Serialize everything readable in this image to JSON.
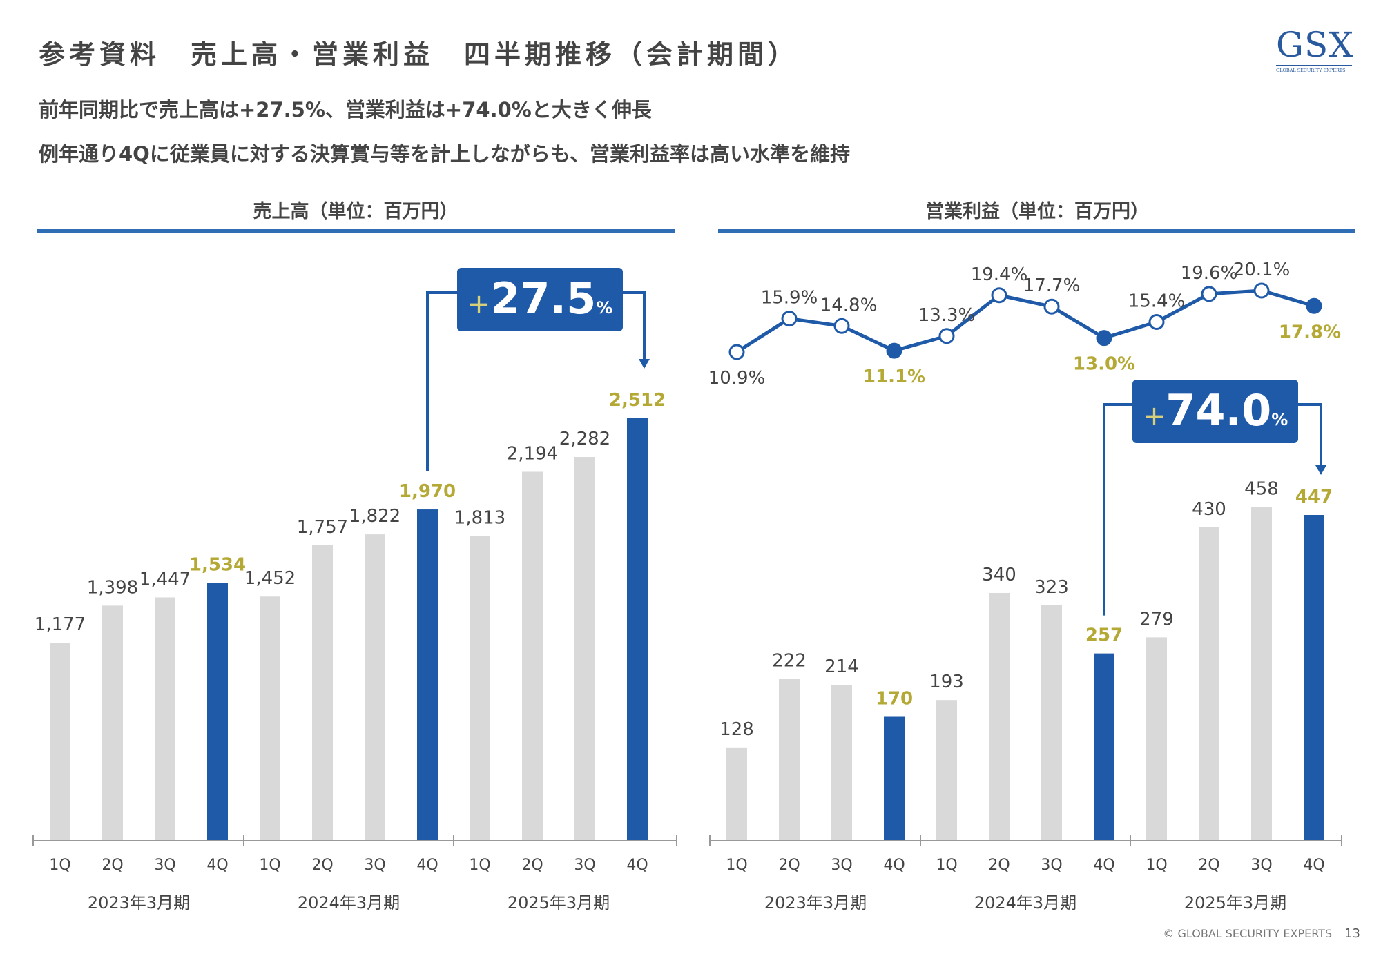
{
  "title": "参考資料　売上高・営業利益　四半期推移（会計期間）",
  "logo": {
    "main": "GSX",
    "sub": "GLOBAL SECURITY EXPERTS"
  },
  "subtitle1": "前年同期比で売上高は+27.5%、営業利益は+74.0%と大きく伸長",
  "subtitle2": "例年通り4Qに従業員に対する決算賞与等を計上しながらも、営業利益率は高い水準を維持",
  "footer": {
    "copyright": "© GLOBAL SECURITY EXPERTS",
    "page": "13"
  },
  "colors": {
    "highlight": "#1f5aa8",
    "grey_bar": "#d9d9d9",
    "accent_label": "#b5a936",
    "header_line": "#2f6db5"
  },
  "chart_data": [
    {
      "type": "bar",
      "title": "売上高（単位：百万円）",
      "quarters": [
        "1Q",
        "2Q",
        "3Q",
        "4Q",
        "1Q",
        "2Q",
        "3Q",
        "4Q",
        "1Q",
        "2Q",
        "3Q",
        "4Q"
      ],
      "fiscal_years": [
        "2023年3月期",
        "2024年3月期",
        "2025年3月期"
      ],
      "values": [
        1177,
        1398,
        1447,
        1534,
        1452,
        1757,
        1822,
        1970,
        1813,
        2194,
        2282,
        2512
      ],
      "value_labels": [
        "1,177",
        "1,398",
        "1,447",
        "1,534",
        "1,452",
        "1,757",
        "1,822",
        "1,970",
        "1,813",
        "2,194",
        "2,282",
        "2,512"
      ],
      "highlighted": [
        3,
        7,
        11
      ],
      "ylim": [
        0,
        2750
      ],
      "growth": {
        "number": "27.5",
        "plus": "+",
        "unit": "%"
      }
    },
    {
      "type": "bar+line",
      "title": "営業利益（単位：百万円）",
      "quarters": [
        "1Q",
        "2Q",
        "3Q",
        "4Q",
        "1Q",
        "2Q",
        "3Q",
        "4Q",
        "1Q",
        "2Q",
        "3Q",
        "4Q"
      ],
      "fiscal_years": [
        "2023年3月期",
        "2024年3月期",
        "2025年3月期"
      ],
      "values": [
        128,
        222,
        214,
        170,
        193,
        340,
        323,
        257,
        279,
        430,
        458,
        447
      ],
      "value_labels": [
        "128",
        "222",
        "214",
        "170",
        "193",
        "340",
        "323",
        "257",
        "279",
        "430",
        "458",
        "447"
      ],
      "highlighted": [
        3,
        7,
        11
      ],
      "ylim": [
        0,
        520
      ],
      "margin_values": [
        10.9,
        15.9,
        14.8,
        11.1,
        13.3,
        19.4,
        17.7,
        13.0,
        15.4,
        19.6,
        20.1,
        17.8
      ],
      "margin_labels": [
        "10.9%",
        "15.9%",
        "14.8%",
        "11.1%",
        "13.3%",
        "19.4%",
        "17.7%",
        "13.0%",
        "15.4%",
        "19.6%",
        "20.1%",
        "17.8%"
      ],
      "margin_range": [
        10,
        21
      ],
      "growth": {
        "number": "74.0",
        "plus": "+",
        "unit": "%"
      }
    }
  ]
}
